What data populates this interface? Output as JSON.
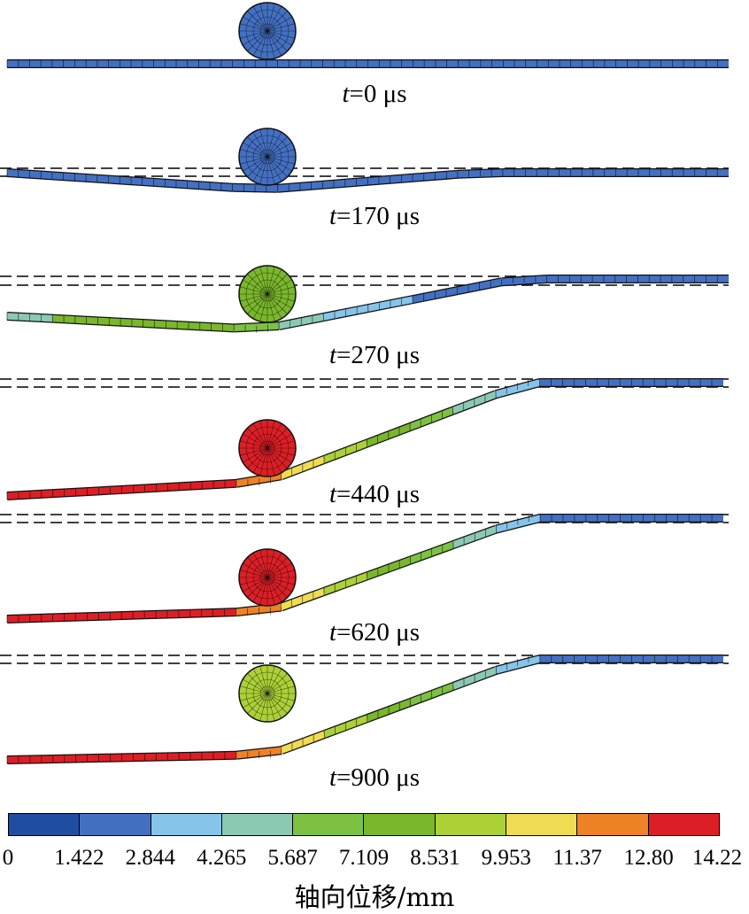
{
  "frames": [
    {
      "time_var": "t",
      "time_text": "=0 μs",
      "ball_level": 1,
      "plate": [
        1,
        1,
        1,
        1,
        1,
        1,
        1,
        1,
        1,
        1,
        1,
        1,
        1,
        1,
        1,
        1
      ]
    },
    {
      "time_var": "t",
      "time_text": "=170 μs",
      "ball_level": 1,
      "plate": [
        1,
        1,
        1,
        1,
        1,
        1,
        1,
        1,
        1,
        1,
        1,
        1,
        1,
        1,
        1,
        1
      ]
    },
    {
      "time_var": "t",
      "time_text": "=270 μs",
      "ball_level": 5,
      "plate": [
        3,
        5,
        5,
        5,
        5,
        4,
        3,
        2,
        2,
        1,
        1,
        1,
        1,
        1,
        1,
        1
      ]
    },
    {
      "time_var": "t",
      "time_text": "=440 μs",
      "ball_level": 9,
      "plate": [
        9,
        9,
        9,
        9,
        9,
        8,
        7,
        6,
        5,
        4,
        3,
        2,
        1,
        1,
        1,
        1
      ]
    },
    {
      "time_var": "t",
      "time_text": "=620 μs",
      "ball_level": 9,
      "plate": [
        9,
        9,
        9,
        9,
        9,
        8,
        7,
        6,
        5,
        4,
        3,
        2,
        1,
        1,
        1,
        1
      ]
    },
    {
      "time_var": "t",
      "time_text": "=900 μs",
      "ball_level": 6,
      "plate": [
        9,
        9,
        9,
        9,
        9,
        8,
        7,
        6,
        5,
        4,
        3,
        2,
        1,
        1,
        1,
        1
      ]
    }
  ],
  "legend": {
    "title": "轴向位移/mm",
    "colors": [
      "#1f4da0",
      "#4470c2",
      "#86c4ea",
      "#8cc9b3",
      "#7dc142",
      "#7ab72c",
      "#acd136",
      "#f0dc52",
      "#ee8227",
      "#dc1f26"
    ],
    "ticks": [
      "0",
      "1.422",
      "2.844",
      "4.265",
      "5.687",
      "7.109",
      "8.531",
      "9.953",
      "11.37",
      "12.80",
      "14.22"
    ]
  }
}
